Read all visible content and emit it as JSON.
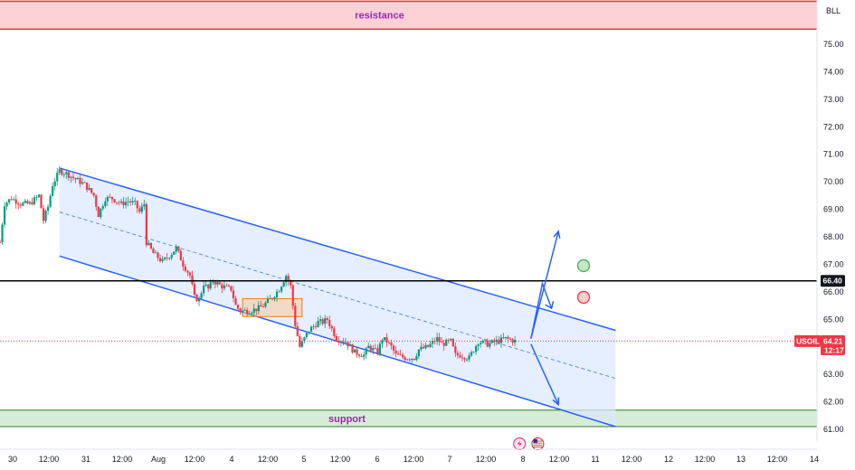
{
  "chart_data": {
    "type": "candlestick",
    "symbol": "USOIL",
    "currency": "BLL",
    "ylim": [
      60.6,
      76.0
    ],
    "y_ticks": [
      "75.00",
      "74.00",
      "73.00",
      "72.00",
      "71.00",
      "70.00",
      "69.00",
      "68.00",
      "67.00",
      "66.00",
      "65.00",
      "64.00",
      "63.00",
      "62.00",
      "61.00"
    ],
    "x_range_hours": [
      -1,
      356
    ],
    "x_ticks": [
      {
        "h": 0,
        "label": "30"
      },
      {
        "h": 12,
        "label": "12:00"
      },
      {
        "h": 24,
        "label": "31"
      },
      {
        "h": 36,
        "label": "12:00"
      },
      {
        "h": 48,
        "label": "Aug"
      },
      {
        "h": 60,
        "label": "12:00"
      },
      {
        "h": 72,
        "label": "4"
      },
      {
        "h": 84,
        "label": "12:00"
      },
      {
        "h": 96,
        "label": "5"
      },
      {
        "h": 108,
        "label": "12:00"
      },
      {
        "h": 120,
        "label": "6"
      },
      {
        "h": 132,
        "label": "12:00"
      },
      {
        "h": 144,
        "label": "7"
      },
      {
        "h": 156,
        "label": "12:00"
      },
      {
        "h": 168,
        "label": "8"
      },
      {
        "h": 180,
        "label": "12:00"
      },
      {
        "h": 192,
        "label": "11"
      },
      {
        "h": 204,
        "label": "12:00"
      },
      {
        "h": 216,
        "label": "12"
      },
      {
        "h": 228,
        "label": "12:00"
      },
      {
        "h": 240,
        "label": "13"
      },
      {
        "h": 252,
        "label": "12:00"
      },
      {
        "h": 264,
        "label": "14"
      }
    ],
    "price_path": [
      [
        -1,
        67.8
      ],
      [
        1,
        69.2
      ],
      [
        4,
        69.4
      ],
      [
        8,
        69.2
      ],
      [
        12,
        69.2
      ],
      [
        16,
        69.5
      ],
      [
        18,
        68.6
      ],
      [
        20,
        69.1
      ],
      [
        22,
        69.9
      ],
      [
        25,
        70.4
      ],
      [
        28,
        70.3
      ],
      [
        32,
        70.1
      ],
      [
        36,
        69.9
      ],
      [
        40,
        69.5
      ],
      [
        42,
        68.8
      ],
      [
        45,
        69.4
      ],
      [
        48,
        69.4
      ],
      [
        52,
        69.2
      ],
      [
        55,
        69.3
      ],
      [
        58,
        69.2
      ],
      [
        60,
        68.9
      ],
      [
        62,
        69.2
      ],
      [
        63,
        67.8
      ],
      [
        66,
        67.4
      ],
      [
        70,
        67.1
      ],
      [
        74,
        67.4
      ],
      [
        76,
        67.6
      ],
      [
        79,
        67.0
      ],
      [
        82,
        66.6
      ],
      [
        84,
        65.8
      ],
      [
        86,
        65.7
      ],
      [
        88,
        66.3
      ],
      [
        90,
        66.1
      ],
      [
        92,
        66.4
      ],
      [
        96,
        66.2
      ],
      [
        100,
        66.1
      ],
      [
        102,
        65.5
      ],
      [
        104,
        65.3
      ],
      [
        108,
        65.3
      ],
      [
        112,
        65.4
      ],
      [
        114,
        65.5
      ],
      [
        118,
        65.8
      ],
      [
        121,
        66.1
      ],
      [
        124,
        66.6
      ],
      [
        126,
        66.2
      ],
      [
        128,
        64.8
      ],
      [
        130,
        64.0
      ],
      [
        134,
        64.6
      ],
      [
        138,
        64.9
      ],
      [
        140,
        64.9
      ],
      [
        142,
        65.0
      ],
      [
        146,
        64.3
      ],
      [
        150,
        64.2
      ],
      [
        154,
        63.8
      ],
      [
        158,
        63.7
      ],
      [
        160,
        64.0
      ],
      [
        164,
        63.8
      ],
      [
        166,
        64.3
      ],
      [
        168,
        64.2
      ],
      [
        170,
        64.0
      ],
      [
        172,
        63.7
      ],
      [
        176,
        63.6
      ],
      [
        180,
        63.6
      ],
      [
        182,
        63.9
      ],
      [
        186,
        64.0
      ],
      [
        190,
        64.3
      ],
      [
        192,
        64.1
      ],
      [
        196,
        64.2
      ],
      [
        198,
        63.7
      ],
      [
        200,
        63.7
      ],
      [
        204,
        63.6
      ],
      [
        208,
        64.2
      ],
      [
        212,
        64.1
      ],
      [
        216,
        64.2
      ],
      [
        220,
        64.3
      ],
      [
        224,
        64.21
      ]
    ],
    "highlight_box": {
      "x": [
        105,
        131
      ],
      "y": [
        65.1,
        65.75
      ]
    },
    "levels": {
      "resistance": "resistance",
      "support": "support",
      "key_level": 66.4
    },
    "resistance_zone": [
      75.55,
      76.6
    ],
    "support_zone": [
      61.1,
      61.7
    ],
    "key_level_label": "66.40",
    "current_price": 64.21,
    "current_price_label": "64.21",
    "countdown": "12:17",
    "channel": {
      "upper": [
        [
          25,
          70.5
        ],
        [
          268,
          64.6
        ]
      ],
      "lower": [
        [
          25,
          67.3
        ],
        [
          268,
          61.1
        ]
      ],
      "mid": [
        [
          25,
          68.9
        ],
        [
          268,
          62.85
        ]
      ]
    },
    "projection_arrows": [
      {
        "from": [
          231,
          64.3
        ],
        "to": [
          243,
          68.2
        ]
      },
      {
        "from": [
          231,
          64.1
        ],
        "to": [
          243,
          61.9
        ]
      }
    ],
    "indicator_circles": [
      {
        "x": 254,
        "y": 66.95,
        "color": "#4caf50"
      },
      {
        "x": 254,
        "y": 65.8,
        "color": "#f23645"
      }
    ]
  },
  "colors": {
    "candle_up": "#089981",
    "candle_down": "#f23645",
    "channel": "#2962ff",
    "channel_fill": "#dbe8ff",
    "resistance_fill": "#fcd1d6",
    "resistance_line": "#f23645",
    "support_fill": "#d6ecd4",
    "support_line": "#2e7d32",
    "key_level": "#000000",
    "price_line": "#f23645",
    "box_fill": "#f5c79a",
    "box_stroke": "#e8801f",
    "zone_label": "#9c27b0"
  },
  "icons": [
    "lightning-event-icon",
    "us-flag-event-icon"
  ]
}
